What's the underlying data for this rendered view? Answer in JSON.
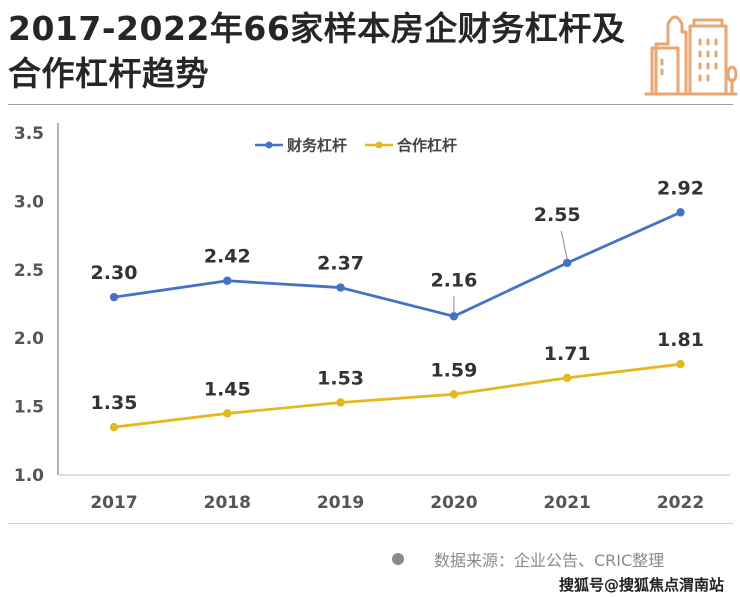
{
  "header": {
    "title": "2017-2022年66家样本房企财务杠杆及合作杠杆趋势",
    "icon": "buildings-icon",
    "icon_color": "#E8A673"
  },
  "chart_data": {
    "type": "line",
    "title": "2017-2022年66家样本房企财务杠杆及合作杠杆趋势",
    "xlabel": "",
    "ylabel": "",
    "categories": [
      "2017",
      "2018",
      "2019",
      "2020",
      "2021",
      "2022"
    ],
    "ylim": [
      1.0,
      3.5
    ],
    "yticks": [
      "1.0",
      "1.5",
      "2.0",
      "2.5",
      "3.0",
      "3.5"
    ],
    "grid": false,
    "legend": "top-center",
    "series": [
      {
        "name": "财务杠杆",
        "color": "#4472C4",
        "values": [
          2.3,
          2.42,
          2.37,
          2.16,
          2.55,
          2.92
        ],
        "labels": [
          "2.30",
          "2.42",
          "2.37",
          "2.16",
          "2.55",
          "2.92"
        ]
      },
      {
        "name": "合作杠杆",
        "color": "#E6B820",
        "values": [
          1.35,
          1.45,
          1.53,
          1.59,
          1.71,
          1.81
        ],
        "labels": [
          "1.35",
          "1.45",
          "1.53",
          "1.59",
          "1.71",
          "1.81"
        ]
      }
    ]
  },
  "footer": {
    "source": "数据来源：企业公告、CRIC整理",
    "watermark": "搜狐号@搜狐焦点渭南站"
  }
}
